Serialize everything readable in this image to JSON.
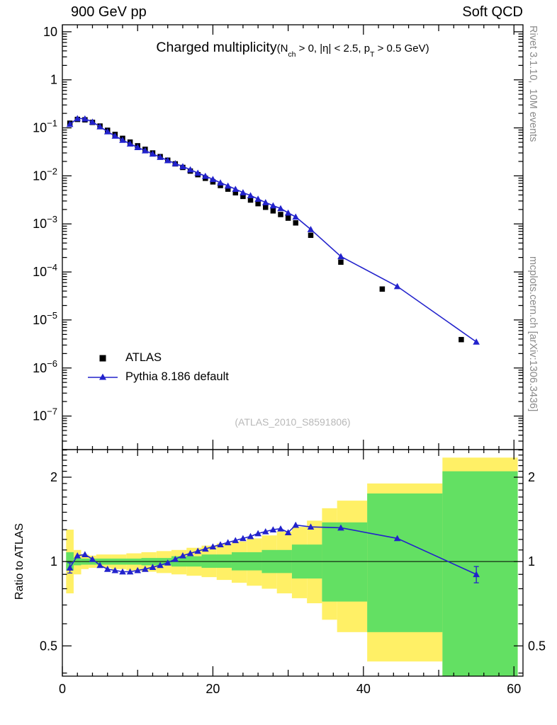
{
  "header": {
    "left": "900 GeV pp",
    "right": "Soft QCD"
  },
  "title_parts": {
    "main": "Charged multiplicity",
    "cond_open": "(N",
    "sub_ch": "ch",
    "cond_mid": " > 0, |η| < 2.5, p",
    "sub_t": "T",
    "cond_close": " > 0.5 GeV)"
  },
  "watermark": "(ATLAS_2010_S8591806)",
  "side_labels": {
    "rivet": "Rivet 3.1.10,  10M events",
    "mcplots": "mcplots.cern.ch [arXiv:1306.3436]"
  },
  "colors": {
    "data": "#000000",
    "mc": "#2222cc",
    "band_outer": "#fff066",
    "band_inner": "#63e063"
  },
  "chart_data": {
    "type": "scatter",
    "title": "Charged multiplicity (Nch > 0, |η| < 2.5, pT > 0.5 GeV)",
    "xlabel": "",
    "grid": false,
    "legend_position": "left-middle",
    "x_range": [
      0,
      61.2
    ],
    "x_major_ticks": [
      0,
      20,
      40,
      60
    ],
    "main_panel": {
      "y_scale": "log",
      "y_range": [
        2e-08,
        14
      ],
      "y_label_exponents": [
        1,
        0,
        -1,
        -2,
        -3,
        -4,
        -5,
        -6,
        -7
      ],
      "series": [
        {
          "name": "ATLAS",
          "marker": "square",
          "line": false,
          "color_key": "data",
          "points": [
            [
              1,
              0.125
            ],
            [
              2,
              0.15
            ],
            [
              3,
              0.147
            ],
            [
              4,
              0.13
            ],
            [
              5,
              0.109
            ],
            [
              6,
              0.089
            ],
            [
              7,
              0.073
            ],
            [
              8,
              0.0605
            ],
            [
              9,
              0.0505
            ],
            [
              10,
              0.0423
            ],
            [
              11,
              0.0357
            ],
            [
              12,
              0.03
            ],
            [
              13,
              0.0252
            ],
            [
              14,
              0.0212
            ],
            [
              15,
              0.0178
            ],
            [
              16,
              0.015
            ],
            [
              17,
              0.0126
            ],
            [
              18,
              0.0106
            ],
            [
              19,
              0.0089
            ],
            [
              20,
              0.0075
            ],
            [
              21,
              0.0063
            ],
            [
              22,
              0.0053
            ],
            [
              23,
              0.00445
            ],
            [
              24,
              0.00374
            ],
            [
              25,
              0.00314
            ],
            [
              26,
              0.00264
            ],
            [
              27,
              0.00222
            ],
            [
              28,
              0.00187
            ],
            [
              29,
              0.00157
            ],
            [
              30,
              0.00132
            ],
            [
              31,
              0.00105
            ],
            [
              33,
              0.00058
            ],
            [
              37,
              0.00016
            ],
            [
              42.5,
              4.4e-05
            ],
            [
              53,
              3.9e-06
            ]
          ]
        },
        {
          "name": "Pythia 8.186 default",
          "marker": "triangle",
          "line": true,
          "color_key": "mc",
          "points": [
            [
              1,
              0.119
            ],
            [
              2,
              0.157
            ],
            [
              3,
              0.155
            ],
            [
              4,
              0.133
            ],
            [
              5,
              0.106
            ],
            [
              6,
              0.0835
            ],
            [
              7,
              0.0678
            ],
            [
              8,
              0.0557
            ],
            [
              9,
              0.0465
            ],
            [
              10,
              0.0393
            ],
            [
              11,
              0.0336
            ],
            [
              12,
              0.0287
            ],
            [
              13,
              0.0245
            ],
            [
              14,
              0.021
            ],
            [
              15,
              0.0181
            ],
            [
              16,
              0.0157
            ],
            [
              17,
              0.0135
            ],
            [
              18,
              0.0115
            ],
            [
              19,
              0.0099
            ],
            [
              20,
              0.0085
            ],
            [
              21,
              0.0072
            ],
            [
              22,
              0.0062
            ],
            [
              23,
              0.0053
            ],
            [
              24,
              0.0045
            ],
            [
              25,
              0.0039
            ],
            [
              26,
              0.0033
            ],
            [
              27,
              0.0028
            ],
            [
              28,
              0.0024
            ],
            [
              29,
              0.0021
            ],
            [
              30,
              0.0017
            ],
            [
              31,
              0.0014
            ],
            [
              33,
              0.00077
            ],
            [
              37,
              0.00021
            ],
            [
              44.5,
              5e-05
            ],
            [
              55,
              3.5e-06
            ]
          ]
        }
      ]
    },
    "ratio_panel": {
      "ylabel": "Ratio to ATLAS",
      "y_scale": "log",
      "y_range": [
        0.39,
        2.51
      ],
      "y_major_ticks": [
        0.5,
        1,
        2
      ],
      "reference_line": 1,
      "bands": {
        "outer_color_key": "band_outer",
        "inner_color_key": "band_inner",
        "outer": [
          [
            0.5,
            1.5,
            0.77,
            1.3
          ],
          [
            1.5,
            2.5,
            0.9,
            1.1
          ],
          [
            2.5,
            3.5,
            0.94,
            1.06
          ],
          [
            3.5,
            4.5,
            0.95,
            1.05
          ],
          [
            4.5,
            6.5,
            0.95,
            1.06
          ],
          [
            6.5,
            8.5,
            0.94,
            1.06
          ],
          [
            8.5,
            10.5,
            0.93,
            1.07
          ],
          [
            10.5,
            12.5,
            0.92,
            1.08
          ],
          [
            12.5,
            14.5,
            0.91,
            1.09
          ],
          [
            14.5,
            16.5,
            0.9,
            1.1
          ],
          [
            16.5,
            18.5,
            0.89,
            1.12
          ],
          [
            18.5,
            20.5,
            0.88,
            1.14
          ],
          [
            20.5,
            22.5,
            0.86,
            1.16
          ],
          [
            22.5,
            24.5,
            0.84,
            1.18
          ],
          [
            24.5,
            26.5,
            0.82,
            1.21
          ],
          [
            26.5,
            28.5,
            0.8,
            1.24
          ],
          [
            28.5,
            30.5,
            0.77,
            1.28
          ],
          [
            30.5,
            32.5,
            0.74,
            1.33
          ],
          [
            32.5,
            34.5,
            0.71,
            1.4
          ],
          [
            34.5,
            36.5,
            0.62,
            1.55
          ],
          [
            36.5,
            40.5,
            0.56,
            1.65
          ],
          [
            40.5,
            50.5,
            0.44,
            1.9
          ],
          [
            50.5,
            60.5,
            0.35,
            2.35
          ]
        ],
        "inner": [
          [
            0.5,
            1.5,
            0.93,
            1.08
          ],
          [
            1.5,
            2.5,
            0.97,
            1.03
          ],
          [
            2.5,
            10.5,
            0.975,
            1.025
          ],
          [
            10.5,
            14.5,
            0.97,
            1.03
          ],
          [
            14.5,
            18.5,
            0.96,
            1.045
          ],
          [
            18.5,
            22.5,
            0.95,
            1.06
          ],
          [
            22.5,
            26.5,
            0.93,
            1.08
          ],
          [
            26.5,
            30.5,
            0.91,
            1.1
          ],
          [
            30.5,
            34.5,
            0.87,
            1.15
          ],
          [
            34.5,
            40.5,
            0.72,
            1.38
          ],
          [
            40.5,
            50.5,
            0.56,
            1.75
          ],
          [
            50.5,
            60.5,
            0.38,
            2.1
          ]
        ]
      },
      "series": [
        {
          "name": "Pythia 8.186 default / ATLAS",
          "marker": "triangle",
          "line": true,
          "color_key": "mc",
          "points": [
            [
              1,
              0.95
            ],
            [
              2,
              1.05
            ],
            [
              3,
              1.06
            ],
            [
              4,
              1.02
            ],
            [
              5,
              0.97
            ],
            [
              6,
              0.94
            ],
            [
              7,
              0.93
            ],
            [
              8,
              0.92
            ],
            [
              9,
              0.92
            ],
            [
              10,
              0.93
            ],
            [
              11,
              0.94
            ],
            [
              12,
              0.955
            ],
            [
              13,
              0.97
            ],
            [
              14,
              0.99
            ],
            [
              15,
              1.02
            ],
            [
              16,
              1.05
            ],
            [
              17,
              1.07
            ],
            [
              18,
              1.09
            ],
            [
              19,
              1.11
            ],
            [
              20,
              1.13
            ],
            [
              21,
              1.15
            ],
            [
              22,
              1.17
            ],
            [
              23,
              1.19
            ],
            [
              24,
              1.21
            ],
            [
              25,
              1.23
            ],
            [
              26,
              1.26
            ],
            [
              27,
              1.28
            ],
            [
              28,
              1.3
            ],
            [
              29,
              1.31
            ],
            [
              30,
              1.27
            ],
            [
              31,
              1.35
            ],
            [
              33,
              1.33
            ],
            [
              37,
              1.32
            ],
            [
              44.5,
              1.21
            ],
            [
              55,
              0.9
            ]
          ],
          "error_bars": [
            [
              1,
              0.95,
              0.04
            ],
            [
              55,
              0.9,
              0.06
            ]
          ]
        }
      ]
    }
  }
}
